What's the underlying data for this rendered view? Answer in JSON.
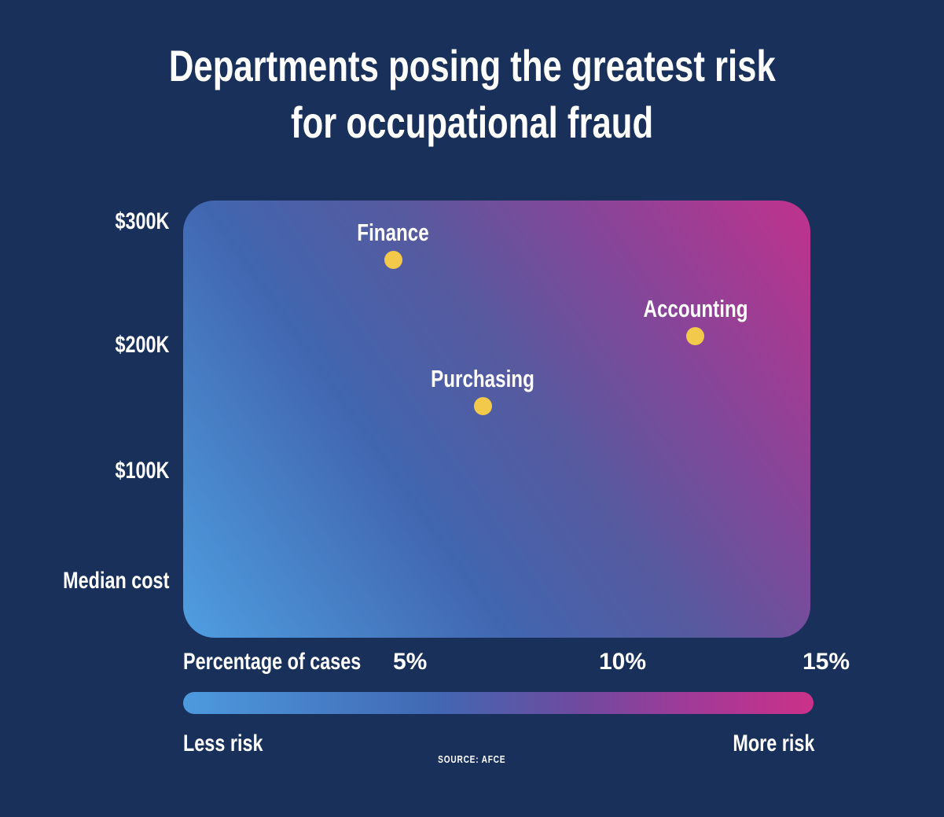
{
  "title": {
    "line1": "Departments posing the greatest risk",
    "line2": "for occupational fraud"
  },
  "y_axis": {
    "ticks": [
      "$300K",
      "$200K",
      "$100K"
    ],
    "label": "Median cost"
  },
  "x_axis": {
    "label": "Percentage of cases",
    "ticks": [
      "5%",
      "10%",
      "15%"
    ]
  },
  "risk_legend": {
    "less": "Less risk",
    "more": "More risk"
  },
  "source": "SOURCE: AFCE",
  "colors": {
    "background": "#18305a",
    "text": "#ffffff",
    "dot": "#f3c94b",
    "plot_gradient_start": "#4f9ee0",
    "plot_gradient_mid": "#4a5fae",
    "plot_gradient_end": "#c0328c",
    "bar_gradient_start": "#4d9ade",
    "bar_gradient_end": "#cb3188"
  },
  "chart_data": {
    "type": "scatter",
    "title": "Departments posing the greatest risk for occupational fraud",
    "xlabel": "Percentage of cases",
    "ylabel": "Median cost",
    "x_ticks": [
      "5%",
      "10%",
      "15%"
    ],
    "y_ticks": [
      "$300K",
      "$200K",
      "$100K"
    ],
    "xlim": [
      0,
      15.2
    ],
    "ylim": [
      0,
      317
    ],
    "grid": false,
    "legend_position": "bottom",
    "background_encoding": "diagonal gradient, blue = less risk (bottom-left) to magenta = more risk (top-right)",
    "points": [
      {
        "label": "Finance",
        "x_pct": 5.0,
        "y_cost_k": 270
      },
      {
        "label": "Purchasing",
        "x_pct": 7.2,
        "y_cost_k": 155
      },
      {
        "label": "Accounting",
        "x_pct": 12.4,
        "y_cost_k": 210
      }
    ],
    "legend": {
      "left": "Less risk",
      "right": "More risk"
    },
    "source": "SOURCE: AFCE"
  }
}
